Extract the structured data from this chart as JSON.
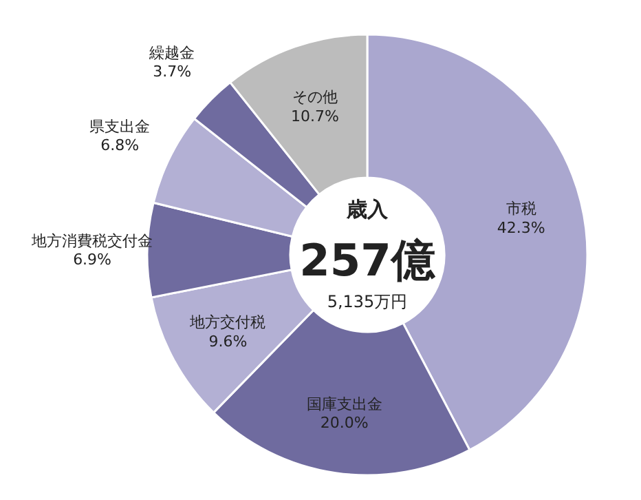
{
  "chart_data": {
    "type": "donut",
    "title": "歳入",
    "annotations": [
      "257億",
      "5,135万円"
    ],
    "categories": [
      "市税",
      "国庫支出金",
      "地方交付税",
      "地方消費税交付金",
      "県支出金",
      "繰越金",
      "その他"
    ],
    "values": [
      42.3,
      20.0,
      9.6,
      6.9,
      6.8,
      3.7,
      10.7
    ],
    "value_labels": [
      "42.3%",
      "20.0%",
      "9.6%",
      "6.9%",
      "6.8%",
      "3.7%",
      "10.7%"
    ],
    "colors": [
      "#aaa7cf",
      "#6f6b9f",
      "#b3b0d4",
      "#6f6b9f",
      "#b3b0d4",
      "#6f6b9f",
      "#bcbcbc"
    ],
    "legend": false
  }
}
